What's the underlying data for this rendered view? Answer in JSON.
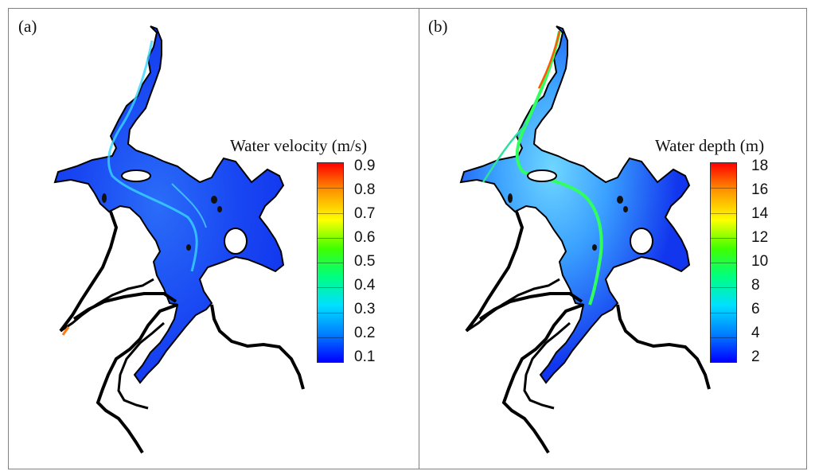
{
  "panel_a": {
    "label": "(a)",
    "legend_title": "Water velocity (m/s)",
    "ticks": [
      "0.9",
      "0.8",
      "0.7",
      "0.6",
      "0.5",
      "0.4",
      "0.3",
      "0.2",
      "0.1"
    ]
  },
  "panel_b": {
    "label": "(b)",
    "legend_title": "Water depth (m)",
    "ticks": [
      "18",
      "16",
      "14",
      "12",
      "10",
      "8",
      "6",
      "4",
      "2"
    ]
  },
  "colors": {
    "colormap": [
      "#0000ff",
      "#0080ff",
      "#00e0ff",
      "#00ff80",
      "#40ff00",
      "#ffff00",
      "#ff9900",
      "#ff0000"
    ],
    "water_fill": "#1a3cf0",
    "shoreline": "#000000"
  }
}
